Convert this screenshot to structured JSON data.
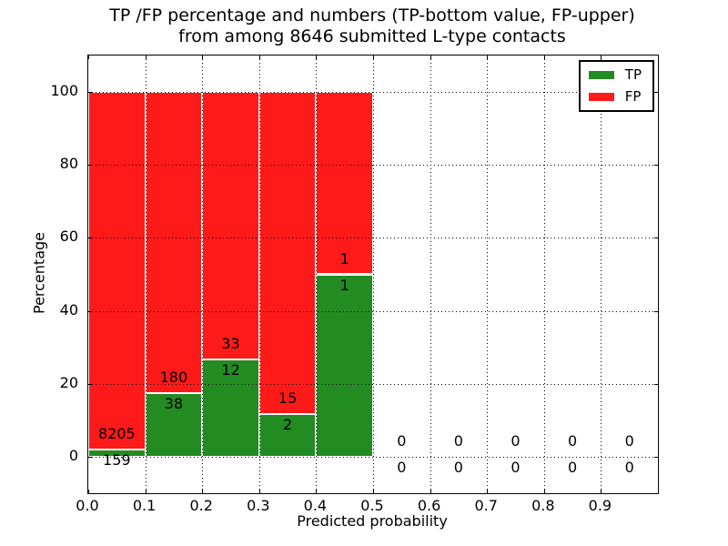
{
  "title": {
    "line1": "TP /FP percentage and numbers (TP-bottom value, FP-upper)",
    "line2": "from among 8646 submitted L-type contacts"
  },
  "chart_data": {
    "type": "bar",
    "stacked": true,
    "title": "TP /FP percentage and numbers (TP-bottom value, FP-upper)\nfrom among 8646 submitted L-type contacts",
    "total_submitted_contacts": 8646,
    "xlabel": "Predicted probability",
    "ylabel": "Percentage",
    "xlim": [
      0.0,
      1.0
    ],
    "ylim": [
      -10,
      110
    ],
    "grid": true,
    "x_ticks": [
      "0.0",
      "0.1",
      "0.2",
      "0.3",
      "0.4",
      "0.5",
      "0.6",
      "0.7",
      "0.8",
      "0.9"
    ],
    "y_ticks": [
      "0",
      "20",
      "40",
      "60",
      "80",
      "100"
    ],
    "legend": {
      "position": "upper right",
      "entries": [
        {
          "label": "TP",
          "color": "#228B22"
        },
        {
          "label": "FP",
          "color": "#FF1A1A"
        }
      ]
    },
    "label_note": "TP count shown below segment boundary, FP count above it",
    "bins": [
      {
        "range": [
          0.0,
          0.1
        ],
        "tp": 159,
        "fp": 8205
      },
      {
        "range": [
          0.1,
          0.2
        ],
        "tp": 38,
        "fp": 180
      },
      {
        "range": [
          0.2,
          0.3
        ],
        "tp": 12,
        "fp": 33
      },
      {
        "range": [
          0.3,
          0.4
        ],
        "tp": 2,
        "fp": 15
      },
      {
        "range": [
          0.4,
          0.5
        ],
        "tp": 1,
        "fp": 1
      },
      {
        "range": [
          0.5,
          0.6
        ],
        "tp": 0,
        "fp": 0
      },
      {
        "range": [
          0.6,
          0.7
        ],
        "tp": 0,
        "fp": 0
      },
      {
        "range": [
          0.7,
          0.8
        ],
        "tp": 0,
        "fp": 0
      },
      {
        "range": [
          0.8,
          0.9
        ],
        "tp": 0,
        "fp": 0
      },
      {
        "range": [
          0.9,
          1.0
        ],
        "tp": 0,
        "fp": 0
      }
    ]
  }
}
